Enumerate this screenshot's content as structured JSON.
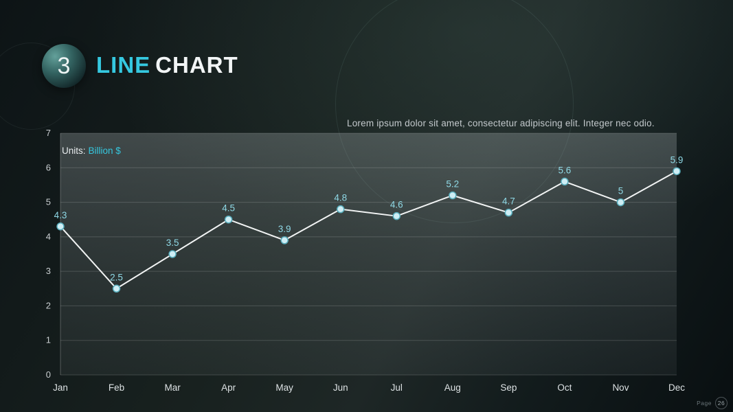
{
  "slide": {
    "badge_number": "3",
    "title_accent": "LINE",
    "title_rest": "CHART",
    "subtitle": "Lorem ipsum dolor sit amet, consectetur adipiscing elit. Integer nec odio.",
    "units_label": "Units:",
    "units_value": "Billion $",
    "footer_page_label": "Page",
    "footer_page_number": "26"
  },
  "colors": {
    "accent": "#35c8e0",
    "value_label": "#8fd9e6",
    "line": "#f2f4f4",
    "dot_fill": "#cfeef5",
    "dot_stroke": "#58aebd",
    "grid": "rgba(255,255,255,0.16)",
    "axis_text": "#c9ced1",
    "x_axis_text": "#dde2e4"
  },
  "chart_data": {
    "type": "line",
    "categories": [
      "Jan",
      "Feb",
      "Mar",
      "Apr",
      "May",
      "Jun",
      "Jul",
      "Aug",
      "Sep",
      "Oct",
      "Nov",
      "Dec"
    ],
    "values": [
      4.3,
      2.5,
      3.5,
      4.5,
      3.9,
      4.8,
      4.6,
      5.2,
      4.7,
      5.6,
      5,
      5.9
    ],
    "title": "LINE CHART",
    "xlabel": "",
    "ylabel": "Billion $",
    "ylim": [
      0,
      7
    ],
    "ytick_step": 1,
    "grid": "horizontal",
    "legend": "none"
  }
}
